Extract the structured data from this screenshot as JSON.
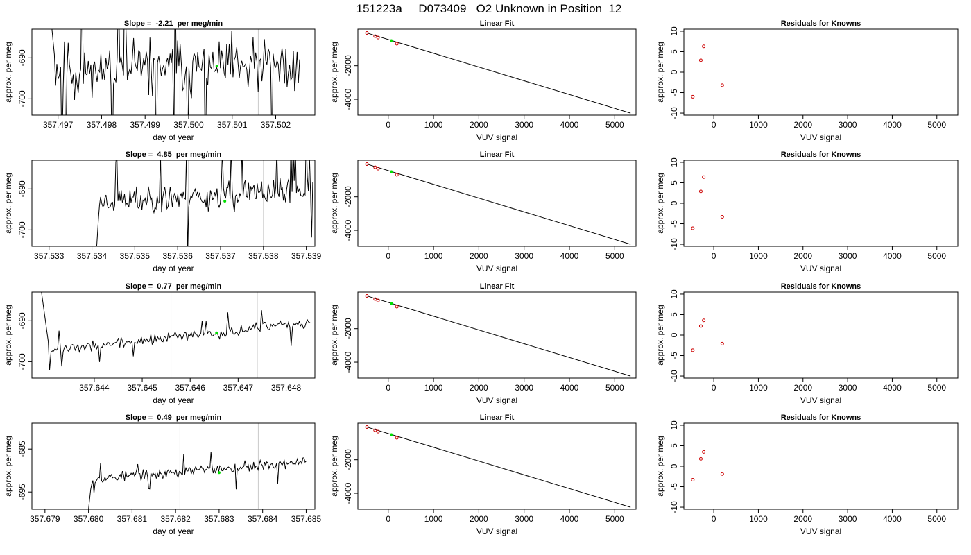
{
  "page_title": "151223a     D073409   O2 Unknown in Position  12",
  "chart_data": [
    {
      "type": "line",
      "panel": "timeseries",
      "title": "Slope =  -2.21  per meg/min",
      "xlabel": "day of year",
      "ylabel": "approx. per meg",
      "xticks": [
        "357.497",
        "357.498",
        "357.499",
        "357.500",
        "357.501",
        "357.502"
      ],
      "yticks": [
        "-690",
        "-700"
      ],
      "xlim": [
        357.4964,
        357.5029
      ],
      "ylim": [
        -704,
        -683
      ],
      "series": [
        {
          "seed": 11,
          "start": 357.4968,
          "end": 357.50255,
          "base": -692.5,
          "noise": 7.5,
          "trend": 0,
          "initial": -676,
          "initial_len": 5
        }
      ],
      "green_point": {
        "x": 357.50065,
        "y": -692
      },
      "vlines": [
        357.4998,
        357.5016
      ]
    },
    {
      "type": "scatter",
      "panel": "fit",
      "title": "Linear Fit",
      "xlabel": "VUV signal",
      "ylabel": "approx. per meg",
      "xticks": [
        "0",
        "1000",
        "2000",
        "3000",
        "4000",
        "5000"
      ],
      "yticks": [
        "-2000",
        "-4000"
      ],
      "xlim": [
        -670,
        5470
      ],
      "ylim": [
        -4950,
        180
      ],
      "knowns": {
        "x": [
          -470,
          -290,
          -225,
          190
        ],
        "y": [
          -50,
          -240,
          -320,
          -690
        ]
      },
      "line": {
        "x": [
          -470,
          5350
        ],
        "y": [
          -50,
          -4830
        ]
      },
      "green_point": {
        "x": 70,
        "y": -505
      }
    },
    {
      "type": "scatter",
      "panel": "residuals",
      "title": "Residuals for Knowns",
      "xlabel": "VUV signal",
      "ylabel": "approx. per meg",
      "xticks": [
        "0",
        "1000",
        "2000",
        "3000",
        "4000",
        "5000"
      ],
      "yticks": [
        "10",
        "5",
        "0",
        "-5",
        "-10"
      ],
      "xlim": [
        -670,
        5470
      ],
      "ylim": [
        -10.5,
        10.5
      ],
      "points": {
        "x": [
          -470,
          -290,
          -225,
          190
        ],
        "y": [
          -6.0,
          2.9,
          6.3,
          -3.2
        ]
      }
    },
    {
      "type": "line",
      "panel": "timeseries",
      "title": "Slope =  4.85  per meg/min",
      "xlabel": "day of year",
      "ylabel": "approx. per meg",
      "xticks": [
        "357.533",
        "357.534",
        "357.535",
        "357.536",
        "357.537",
        "357.538",
        "357.539"
      ],
      "yticks": [
        "-690",
        "-700"
      ],
      "xlim": [
        357.5326,
        357.5392
      ],
      "ylim": [
        -704,
        -683
      ],
      "series": [
        {
          "seed": 23,
          "start": 357.5341,
          "end": 357.53915,
          "base": -693,
          "noise": 3.8,
          "trend": 2.5,
          "initial": -706,
          "initial_len": 3
        }
      ],
      "green_point": {
        "x": 357.5371,
        "y": -693
      },
      "vlines": [
        357.53625,
        357.538
      ]
    },
    {
      "type": "scatter",
      "panel": "fit",
      "title": "Linear Fit",
      "xlabel": "VUV signal",
      "ylabel": "approx. per meg",
      "xticks": [
        "0",
        "1000",
        "2000",
        "3000",
        "4000",
        "5000"
      ],
      "yticks": [
        "-2000",
        "-4000"
      ],
      "xlim": [
        -670,
        5470
      ],
      "ylim": [
        -4950,
        180
      ],
      "knowns": {
        "x": [
          -470,
          -290,
          -225,
          190
        ],
        "y": [
          -50,
          -240,
          -320,
          -690
        ]
      },
      "line": {
        "x": [
          -470,
          5350
        ],
        "y": [
          -50,
          -4830
        ]
      },
      "green_point": {
        "x": 70,
        "y": -505
      }
    },
    {
      "type": "scatter",
      "panel": "residuals",
      "title": "Residuals for Knowns",
      "xlabel": "VUV signal",
      "ylabel": "approx. per meg",
      "xticks": [
        "0",
        "1000",
        "2000",
        "3000",
        "4000",
        "5000"
      ],
      "yticks": [
        "10",
        "5",
        "0",
        "-5",
        "-10"
      ],
      "xlim": [
        -670,
        5470
      ],
      "ylim": [
        -10.5,
        10.5
      ],
      "points": {
        "x": [
          -470,
          -290,
          -225,
          190
        ],
        "y": [
          -6.1,
          2.9,
          6.4,
          -3.3
        ]
      }
    },
    {
      "type": "line",
      "panel": "timeseries",
      "title": "Slope =  0.77  per meg/min",
      "xlabel": "day of year",
      "ylabel": "approx. per meg",
      "xticks": [
        "357.644",
        "357.645",
        "357.646",
        "357.647",
        "357.648"
      ],
      "yticks": [
        "-690",
        "-700"
      ],
      "xlim": [
        357.6427,
        357.6486
      ],
      "ylim": [
        -704,
        -683
      ],
      "series": [
        {
          "seed": 37,
          "start": 357.6429,
          "end": 357.6485,
          "base": -697.5,
          "noise": 1.4,
          "trend": 7,
          "initial": -683,
          "initial_len": 6
        }
      ],
      "green_point": {
        "x": 357.64655,
        "y": -693
      },
      "vlines": [
        357.6456,
        357.6474
      ]
    },
    {
      "type": "scatter",
      "panel": "fit",
      "title": "Linear Fit",
      "xlabel": "VUV signal",
      "ylabel": "approx. per meg",
      "xticks": [
        "0",
        "1000",
        "2000",
        "3000",
        "4000",
        "5000"
      ],
      "yticks": [
        "-2000",
        "-4000"
      ],
      "xlim": [
        -670,
        5470
      ],
      "ylim": [
        -4950,
        180
      ],
      "knowns": {
        "x": [
          -470,
          -290,
          -225,
          190
        ],
        "y": [
          -50,
          -240,
          -320,
          -690
        ]
      },
      "line": {
        "x": [
          -470,
          5350
        ],
        "y": [
          -50,
          -4830
        ]
      },
      "green_point": {
        "x": 70,
        "y": -505
      }
    },
    {
      "type": "scatter",
      "panel": "residuals",
      "title": "Residuals for Knowns",
      "xlabel": "VUV signal",
      "ylabel": "approx. per meg",
      "xticks": [
        "0",
        "1000",
        "2000",
        "3000",
        "4000",
        "5000"
      ],
      "yticks": [
        "10",
        "5",
        "0",
        "-5",
        "-10"
      ],
      "xlim": [
        -670,
        5470
      ],
      "ylim": [
        -10.5,
        10.5
      ],
      "points": {
        "x": [
          -470,
          -290,
          -225,
          190
        ],
        "y": [
          -3.7,
          2.2,
          3.6,
          -2.1
        ]
      }
    },
    {
      "type": "line",
      "panel": "timeseries",
      "title": "Slope =  0.49  per meg/min",
      "xlabel": "day of year",
      "ylabel": "approx. per meg",
      "xticks": [
        "357.679",
        "357.680",
        "357.681",
        "357.682",
        "357.683",
        "357.684",
        "357.685"
      ],
      "yticks": [
        "-685",
        "-695"
      ],
      "xlim": [
        357.6787,
        357.6852
      ],
      "ylim": [
        -699,
        -679
      ],
      "series": [
        {
          "seed": 53,
          "start": 357.68,
          "end": 357.685,
          "base": -692,
          "noise": 1.3,
          "trend": 4,
          "initial": -699,
          "initial_len": 3
        }
      ],
      "green_point": {
        "x": 357.683,
        "y": -690.5
      },
      "vlines": [
        357.6821,
        357.6839
      ]
    },
    {
      "type": "scatter",
      "panel": "fit",
      "title": "Linear Fit",
      "xlabel": "VUV signal",
      "ylabel": "approx. per meg",
      "xticks": [
        "0",
        "1000",
        "2000",
        "3000",
        "4000",
        "5000"
      ],
      "yticks": [
        "-2000",
        "-4000"
      ],
      "xlim": [
        -670,
        5470
      ],
      "ylim": [
        -4950,
        180
      ],
      "knowns": {
        "x": [
          -470,
          -290,
          -225,
          190
        ],
        "y": [
          -50,
          -240,
          -320,
          -690
        ]
      },
      "line": {
        "x": [
          -470,
          5350
        ],
        "y": [
          -50,
          -4830
        ]
      },
      "green_point": {
        "x": 70,
        "y": -505
      }
    },
    {
      "type": "scatter",
      "panel": "residuals",
      "title": "Residuals for Knowns",
      "xlabel": "VUV signal",
      "ylabel": "approx. per meg",
      "xticks": [
        "0",
        "1000",
        "2000",
        "3000",
        "4000",
        "5000"
      ],
      "yticks": [
        "10",
        "5",
        "0",
        "-5",
        "-10"
      ],
      "xlim": [
        -670,
        5470
      ],
      "ylim": [
        -10.5,
        10.5
      ],
      "points": {
        "x": [
          -470,
          -290,
          -225,
          190
        ],
        "y": [
          -3.3,
          1.8,
          3.5,
          -1.9
        ]
      }
    }
  ],
  "colors": {
    "line": "#000000",
    "known_point": "#cc0000",
    "unknown_point": "#00dd00",
    "vline": "#c8c8c8"
  }
}
